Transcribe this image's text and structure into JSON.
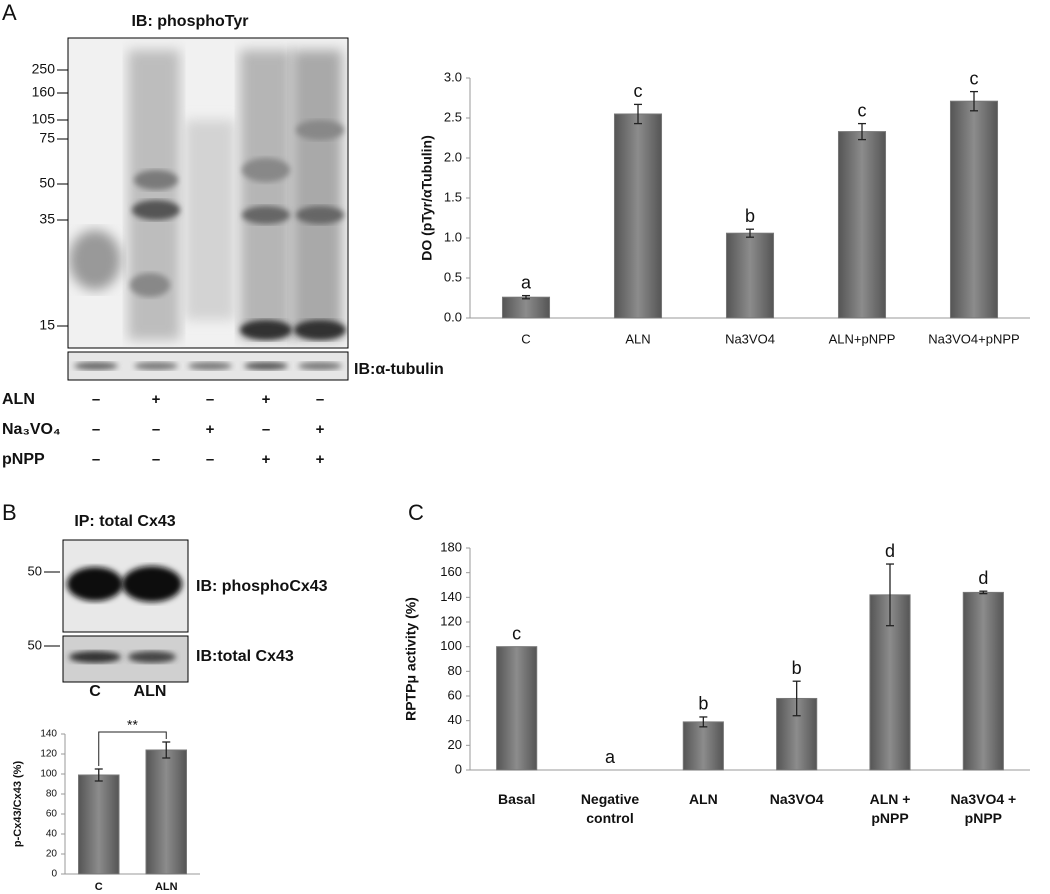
{
  "panel_labels": [
    "A",
    "B",
    "C"
  ],
  "blots": {
    "a": {
      "title": "IB: phosphoTyr",
      "mw": [
        "250",
        "160",
        "105",
        "75",
        "50",
        "35",
        "15"
      ],
      "tubulin_label": "IB:α-tubulin",
      "treatments": [
        {
          "name": "ALN",
          "signs": [
            "–",
            "+",
            "–",
            "+",
            "–"
          ]
        },
        {
          "name": "Na₃VO₄",
          "signs": [
            "–",
            "–",
            "+",
            "–",
            "+"
          ]
        },
        {
          "name": "pNPP",
          "signs": [
            "–",
            "–",
            "–",
            "+",
            "+"
          ]
        }
      ]
    },
    "b": {
      "title": "IP: total Cx43",
      "mw": [
        "50",
        "50"
      ],
      "labels": [
        "IB: phosphoCx43",
        "IB:total Cx43"
      ],
      "lanes": [
        "C",
        "ALN"
      ]
    }
  },
  "chart_data": [
    {
      "type": "bar",
      "y_label": "DO (pTyr/αTubulin)",
      "categories": [
        "C",
        "ALN",
        "Na3VO4",
        "ALN+pNPP",
        "Na3VO4+pNPP"
      ],
      "values": [
        0.26,
        2.55,
        1.06,
        2.33,
        2.71
      ],
      "errors": [
        0.02,
        0.12,
        0.05,
        0.1,
        0.12
      ],
      "letters": [
        "a",
        "c",
        "b",
        "c",
        "c"
      ],
      "color": "#777777",
      "ylim": [
        0,
        3
      ],
      "yticks": [
        {
          "value": 0,
          "label": "0.0"
        },
        0.5,
        {
          "value": 1,
          "label": "1.0"
        },
        1.5,
        {
          "value": 2,
          "label": "2.0"
        },
        2.5,
        {
          "value": 3,
          "label": "3.0"
        }
      ]
    },
    {
      "type": "bar",
      "y_label": "p-Cx43/Cx43 (%)",
      "categories": [
        "C",
        "ALN"
      ],
      "values": [
        99,
        124
      ],
      "errors": [
        6,
        8
      ],
      "annotation": "**",
      "color": "#777777",
      "ylim": [
        0,
        140
      ],
      "yticks": [
        0,
        20,
        40,
        60,
        80,
        100,
        120,
        140
      ]
    },
    {
      "type": "bar",
      "y_label": "RPTPμ activity (%)",
      "categories": [
        "Basal",
        "Negative control",
        "ALN",
        "Na3VO4",
        "ALN + pNPP",
        "Na3VO4 + pNPP"
      ],
      "values": [
        100,
        0,
        39,
        58,
        142,
        144
      ],
      "errors": [
        null,
        null,
        4,
        14,
        25,
        1
      ],
      "letters": [
        "c",
        "a",
        "b",
        "b",
        "d",
        "d"
      ],
      "color": "#777777",
      "ylim": [
        0,
        180
      ],
      "yticks": [
        0,
        20,
        40,
        60,
        80,
        100,
        120,
        140,
        160,
        180
      ]
    }
  ]
}
